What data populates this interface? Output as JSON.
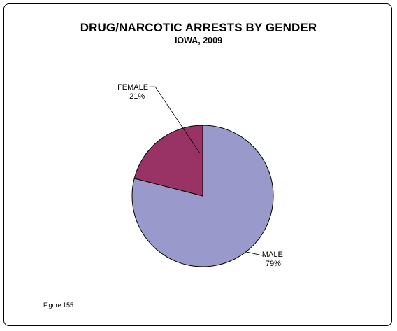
{
  "chart_data": {
    "type": "pie",
    "title": "DRUG/NARCOTIC ARRESTS BY GENDER",
    "subtitle": "IOWA, 2009",
    "slices": [
      {
        "label": "MALE",
        "value": 79,
        "value_label": "79%",
        "color": "#9999cc"
      },
      {
        "label": "FEMALE",
        "value": 21,
        "value_label": "21%",
        "color": "#993366"
      }
    ],
    "legend": "none"
  },
  "figure_label": "Figure 155"
}
